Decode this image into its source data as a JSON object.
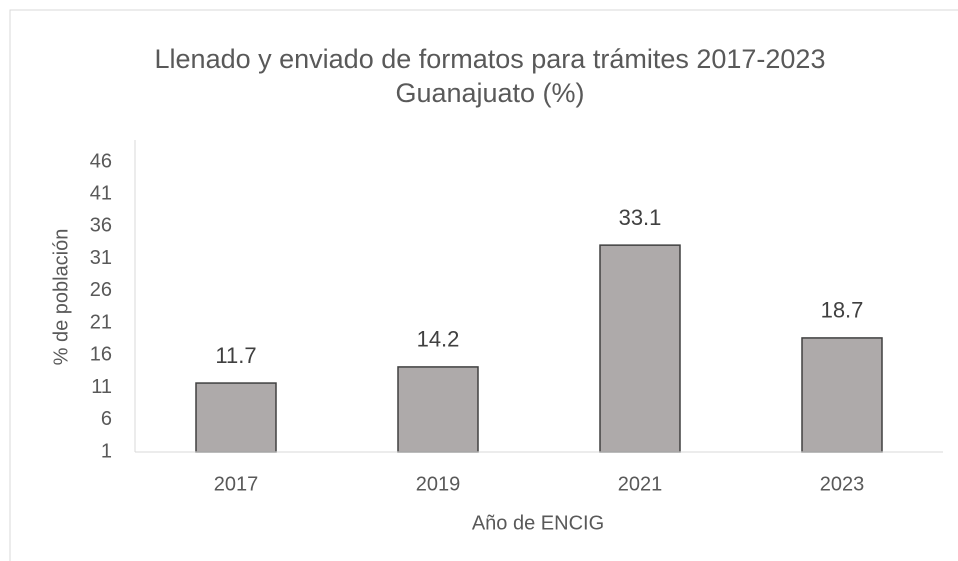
{
  "chart_data": {
    "type": "bar",
    "title": "Llenado y enviado de formatos para trámites 2017-2023 Guanajuato (%)",
    "categories": [
      "2017",
      "2019",
      "2021",
      "2023"
    ],
    "values": [
      11.7,
      14.2,
      33.1,
      18.7
    ],
    "color": "#aeaaaa",
    "ylim": [
      1,
      46
    ],
    "yticks": [
      1,
      6,
      11,
      16,
      21,
      26,
      31,
      36,
      41,
      46
    ],
    "xlabel": "Año de ENCIG",
    "ylabel": "% de población",
    "grid": false
  }
}
